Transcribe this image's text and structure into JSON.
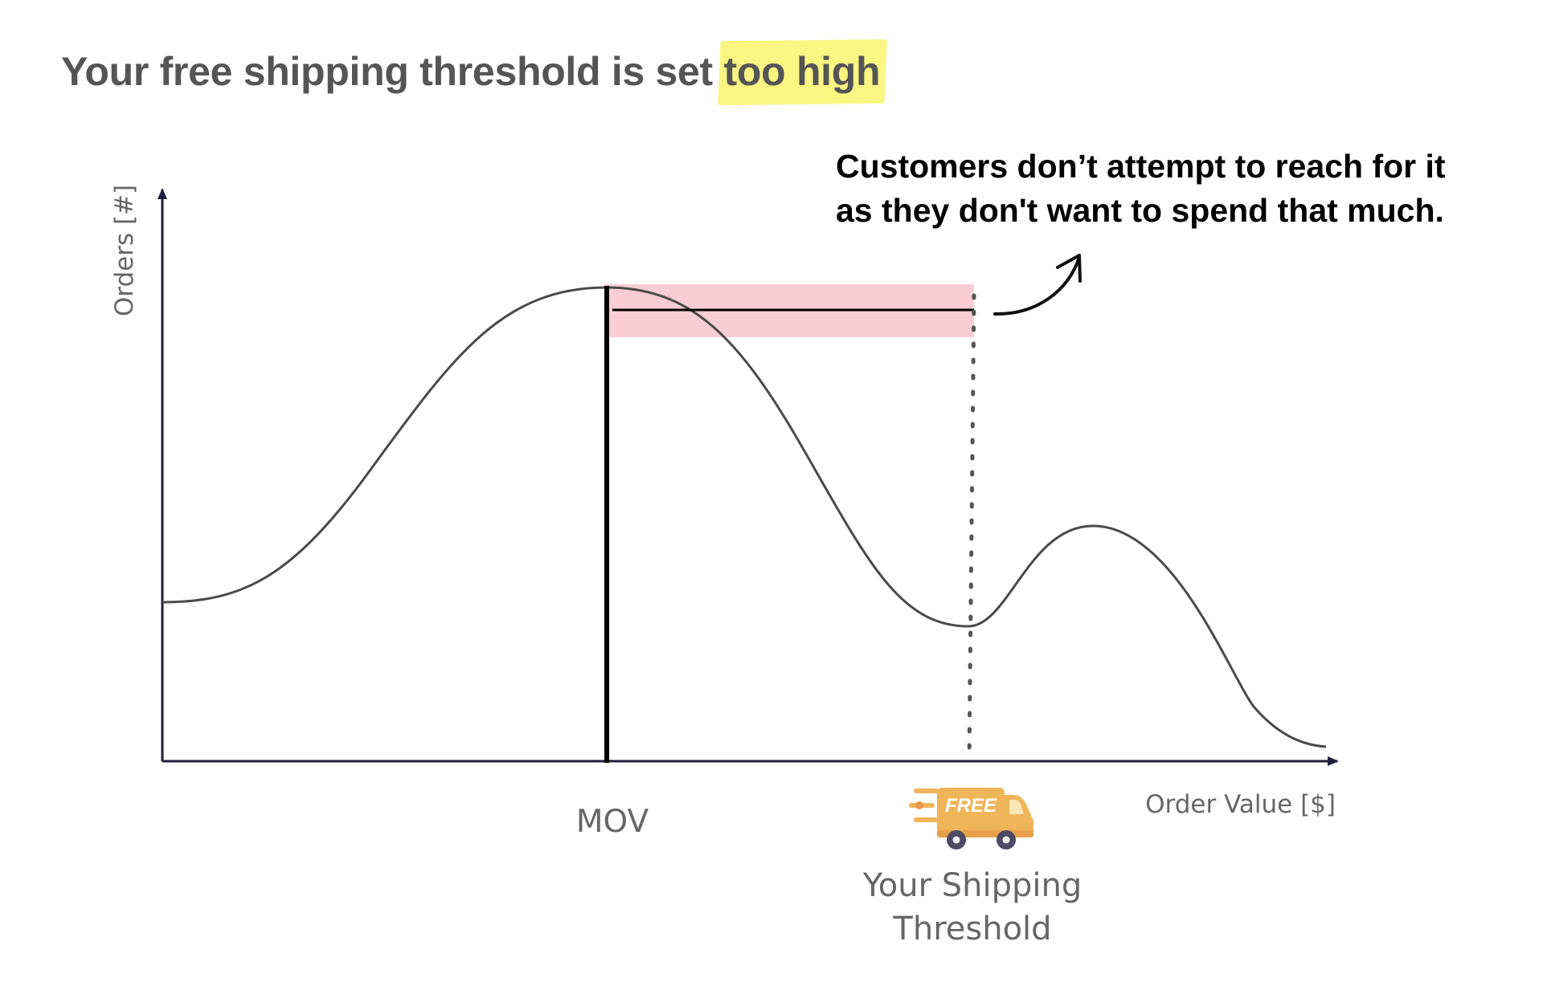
{
  "title": {
    "prefix": "Your free shipping threshold is set ",
    "highlight": "too high",
    "highlight_color": "#fbf47a"
  },
  "callout": {
    "line1": "Customers don’t attempt to reach for it",
    "line2": "as they don't want to spend that much."
  },
  "axes": {
    "y_label": "Orders [#]",
    "x_label": "Order Value [$]"
  },
  "markers": {
    "mov_label": "MOV",
    "threshold_label_line1": "Your Shipping",
    "threshold_label_line2": "Threshold"
  },
  "badge": {
    "text": "FREE",
    "icon": "delivery-truck-icon",
    "color": "#f0b459"
  },
  "colors": {
    "band": "#f9cdd5",
    "curve": "#4a4a4a",
    "axis": "#1f1d3d"
  }
}
